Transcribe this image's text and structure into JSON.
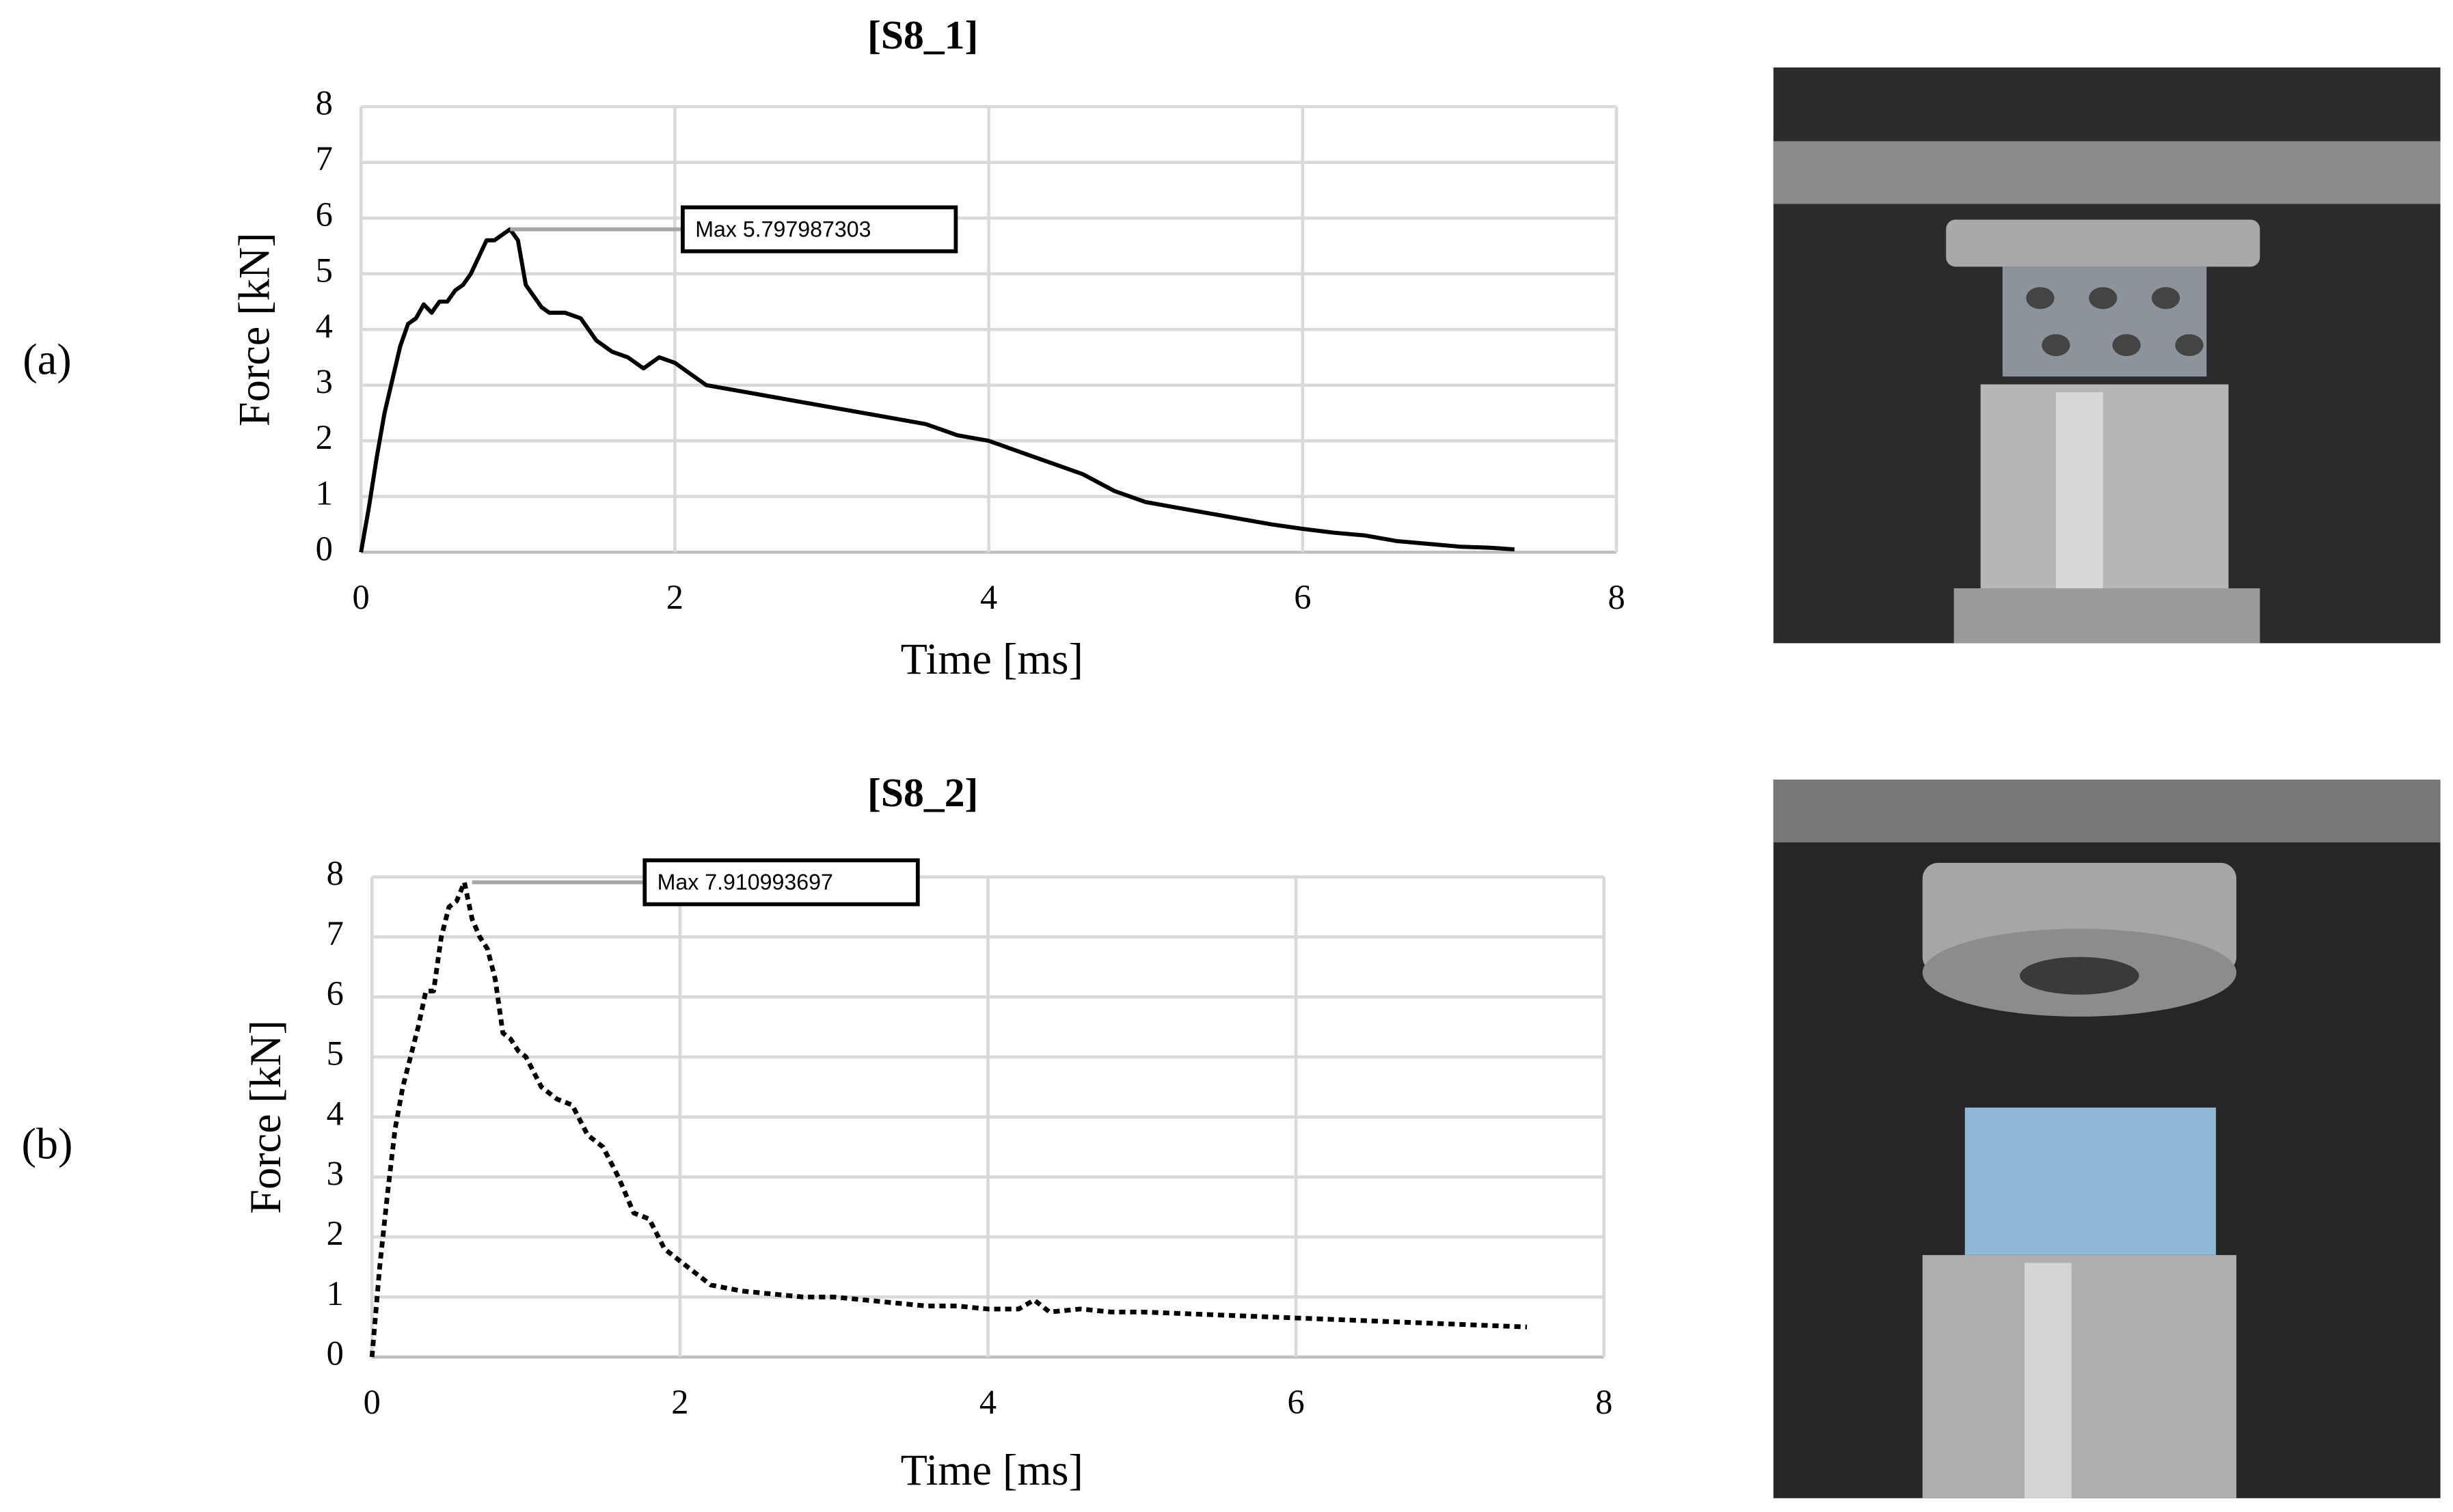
{
  "chart_data": [
    {
      "type": "line",
      "title": "[S8_1]",
      "panel_label": "(a)",
      "xlabel": "Time [ms]",
      "ylabel": "Force [kN]",
      "xlim": [
        0,
        8
      ],
      "xticks": [
        0,
        2,
        4,
        6,
        8
      ],
      "ylim": [
        0,
        8
      ],
      "yticks": [
        0,
        1,
        2,
        3,
        4,
        5,
        6,
        7,
        8
      ],
      "grid": true,
      "color": "#000000",
      "line_style": "solid",
      "x": [
        0,
        0.05,
        0.1,
        0.15,
        0.2,
        0.25,
        0.3,
        0.35,
        0.4,
        0.45,
        0.5,
        0.55,
        0.6,
        0.65,
        0.7,
        0.75,
        0.8,
        0.85,
        0.9,
        0.95,
        1.0,
        1.05,
        1.1,
        1.15,
        1.2,
        1.3,
        1.4,
        1.5,
        1.6,
        1.7,
        1.8,
        1.9,
        2.0,
        2.1,
        2.2,
        2.4,
        2.6,
        2.8,
        3.0,
        3.2,
        3.4,
        3.6,
        3.8,
        4.0,
        4.2,
        4.4,
        4.6,
        4.8,
        5.0,
        5.2,
        5.4,
        5.6,
        5.8,
        6.0,
        6.2,
        6.4,
        6.6,
        6.8,
        7.0,
        7.2,
        7.35
      ],
      "values": [
        0,
        0.8,
        1.7,
        2.5,
        3.1,
        3.7,
        4.1,
        4.2,
        4.45,
        4.3,
        4.5,
        4.5,
        4.7,
        4.8,
        5.0,
        5.3,
        5.6,
        5.6,
        5.7,
        5.797987303,
        5.6,
        4.8,
        4.6,
        4.4,
        4.3,
        4.3,
        4.2,
        3.8,
        3.6,
        3.5,
        3.3,
        3.5,
        3.4,
        3.2,
        3.0,
        2.9,
        2.8,
        2.7,
        2.6,
        2.5,
        2.4,
        2.3,
        2.1,
        2.0,
        1.8,
        1.6,
        1.4,
        1.1,
        0.9,
        0.8,
        0.7,
        0.6,
        0.5,
        0.42,
        0.35,
        0.3,
        0.2,
        0.15,
        0.1,
        0.08,
        0.05
      ],
      "annotation": {
        "text": "Max 5.797987303",
        "x": 0.95,
        "y": 5.797987303
      }
    },
    {
      "type": "line",
      "title": "[S8_2]",
      "panel_label": "(b)",
      "xlabel": "Time [ms]",
      "ylabel": "Force [kN]",
      "xlim": [
        0,
        8
      ],
      "xticks": [
        0,
        2,
        4,
        6,
        8
      ],
      "ylim": [
        0,
        8
      ],
      "yticks": [
        0,
        1,
        2,
        3,
        4,
        5,
        6,
        7,
        8
      ],
      "grid": true,
      "color": "#000000",
      "line_style": "dotted",
      "x": [
        0,
        0.05,
        0.1,
        0.15,
        0.2,
        0.25,
        0.3,
        0.35,
        0.4,
        0.45,
        0.5,
        0.55,
        0.6,
        0.65,
        0.7,
        0.75,
        0.8,
        0.85,
        0.9,
        0.95,
        1.0,
        1.1,
        1.2,
        1.3,
        1.4,
        1.5,
        1.6,
        1.7,
        1.8,
        1.9,
        2.0,
        2.1,
        2.2,
        2.4,
        2.6,
        2.8,
        3.0,
        3.2,
        3.4,
        3.6,
        3.8,
        4.0,
        4.2,
        4.3,
        4.4,
        4.6,
        4.8,
        5.0,
        5.5,
        6.0,
        6.5,
        7.0,
        7.5
      ],
      "values": [
        0,
        1.5,
        2.7,
        3.8,
        4.5,
        5.0,
        5.5,
        6.1,
        6.1,
        7.0,
        7.5,
        7.6,
        7.910993697,
        7.3,
        7.0,
        6.8,
        6.3,
        5.4,
        5.3,
        5.1,
        5.0,
        4.5,
        4.3,
        4.2,
        3.7,
        3.5,
        3.0,
        2.4,
        2.3,
        1.8,
        1.6,
        1.4,
        1.2,
        1.1,
        1.05,
        1.0,
        1.0,
        0.95,
        0.9,
        0.85,
        0.85,
        0.8,
        0.8,
        0.95,
        0.75,
        0.8,
        0.75,
        0.75,
        0.7,
        0.65,
        0.6,
        0.55,
        0.5
      ],
      "annotation": {
        "text": "Max 7.910993697",
        "x": 0.65,
        "y": 7.910993697
      }
    }
  ]
}
